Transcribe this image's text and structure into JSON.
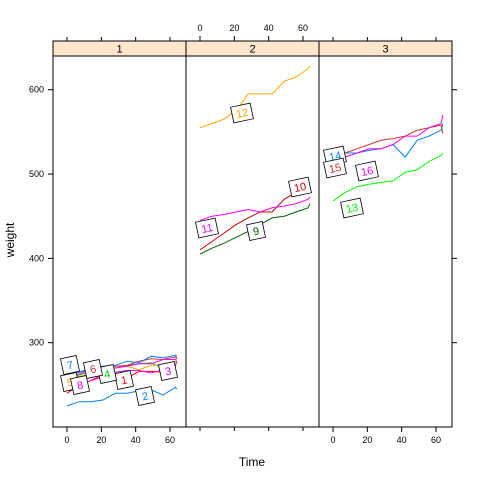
{
  "chart_data": {
    "type": "line",
    "xlabel": "Time",
    "ylabel": "weight",
    "xlim": [
      -7,
      71
    ],
    "ylim": [
      200,
      640
    ],
    "x_ticks": [
      0,
      20,
      40,
      60
    ],
    "y_ticks": [
      300,
      400,
      500,
      600
    ],
    "time_points": [
      0,
      7,
      14,
      21,
      28,
      35,
      42,
      49,
      56,
      63,
      64
    ],
    "panels": [
      {
        "label": "1",
        "series": [
          {
            "label": "1",
            "color": "#ff0000",
            "values": [
              240,
              250,
              255,
              260,
              262,
              258,
              266,
              266,
              265,
              272,
              278
            ]
          },
          {
            "label": "2",
            "color": "#0080ff",
            "values": [
              225,
              230,
              230,
              232,
              240,
              240,
              243,
              244,
              238,
              247,
              245
            ]
          },
          {
            "label": "3",
            "color": "#ff00ff",
            "values": [
              245,
              250,
              255,
              263,
              265,
              267,
              267,
              264,
              268,
              273,
              278
            ]
          },
          {
            "label": "4",
            "color": "#00c000",
            "values": [
              255,
              262,
              265,
              267,
              270,
              273,
              275,
              276,
              270,
              278,
              278
            ]
          },
          {
            "label": "5",
            "color": "#ffa500",
            "values": [
              255,
              260,
              262,
              268,
              270,
              272,
              268,
              273,
              274,
              278,
              280
            ]
          },
          {
            "label": "6",
            "color": "#cc3333",
            "values": [
              260,
              265,
              268,
              270,
              272,
              273,
              278,
              281,
              280,
              283,
              285
            ]
          },
          {
            "label": "7",
            "color": "#0080ff",
            "values": [
              260,
              265,
              270,
              272,
              273,
              278,
              276,
              284,
              282,
              285,
              281
            ]
          },
          {
            "label": "8",
            "color": "#ff00ff",
            "values": [
              255,
              263,
              268,
              270,
              270,
              272,
              275,
              275,
              280,
              280,
              282
            ]
          }
        ]
      },
      {
        "label": "2",
        "series": [
          {
            "label": "9",
            "color": "#006400",
            "values": [
              405,
              412,
              418,
              425,
              432,
              440,
              448,
              450,
              455,
              460,
              465
            ]
          },
          {
            "label": "10",
            "color": "#cc0000",
            "values": [
              410,
              420,
              430,
              440,
              448,
              455,
              455,
              470,
              478,
              482,
              480
            ]
          },
          {
            "label": "11",
            "color": "#ff00ff",
            "values": [
              445,
              450,
              452,
              455,
              458,
              455,
              460,
              462,
              465,
              470,
              473
            ]
          },
          {
            "label": "12",
            "color": "#ffa500",
            "values": [
              555,
              560,
              565,
              575,
              595,
              595,
              595,
              610,
              615,
              625,
              628
            ]
          }
        ]
      },
      {
        "label": "3",
        "series": [
          {
            "label": "13",
            "color": "#00ff00",
            "values": [
              468,
              478,
              485,
              488,
              490,
              492,
              502,
              505,
              515,
              522,
              525
            ]
          },
          {
            "label": "14",
            "color": "#0080ff",
            "values": [
              520,
              525,
              525,
              528,
              530,
              535,
              520,
              540,
              545,
              552,
              560
            ]
          },
          {
            "label": "15",
            "color": "#cc3333",
            "values": [
              520,
              525,
              530,
              535,
              540,
              542,
              545,
              552,
              555,
              558,
              548
            ]
          },
          {
            "label": "16",
            "color": "#ff00ff",
            "values": [
              510,
              520,
              525,
              530,
              530,
              535,
              545,
              545,
              555,
              560,
              570
            ]
          }
        ]
      }
    ]
  }
}
